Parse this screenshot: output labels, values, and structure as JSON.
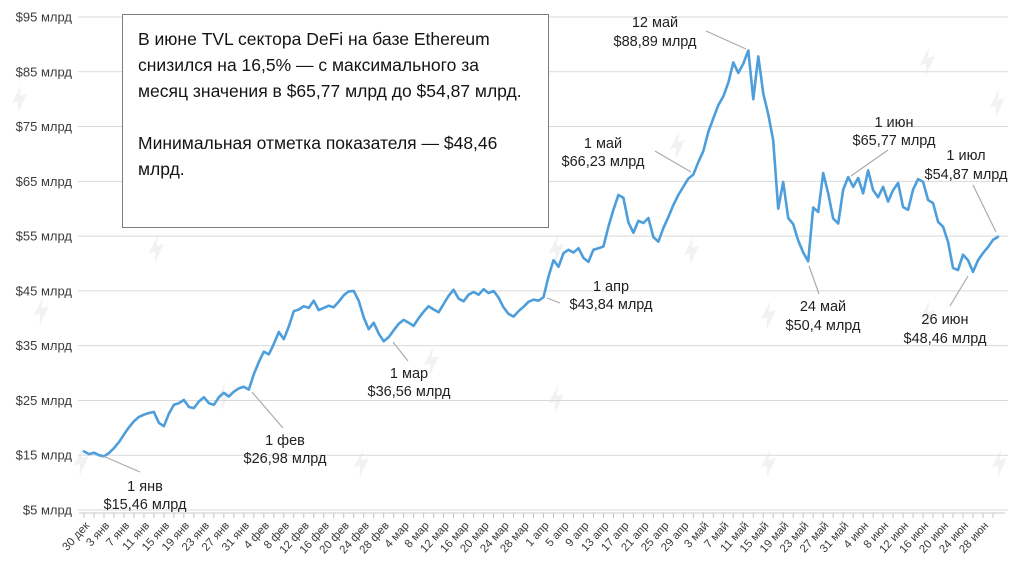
{
  "infobox": {
    "paragraph1": "В июне TVL сектора DeFi на базе Ethereum снизился на 16,5% — с максимального за месяц значения в $65,77 млрд до $54,87 млрд.",
    "paragraph2": "Минимальная отметка показателя — $48,46 млрд."
  },
  "icons": {
    "watermark": "forklog-lightning-watermark"
  },
  "chart_data": {
    "type": "line",
    "title": "",
    "xlabel": "",
    "ylabel": "",
    "ylim": [
      5,
      95
    ],
    "grid": true,
    "line_color": "#4D9EDB",
    "grid_color": "#D9D9D9",
    "y_ticks": [
      95,
      85,
      75,
      65,
      55,
      45,
      35,
      25,
      15,
      5
    ],
    "y_tick_labels": [
      "$95 млрд",
      "$85 млрд",
      "$75 млрд",
      "$65 млрд",
      "$55 млрд",
      "$45 млрд",
      "$35 млрд",
      "$25 млрд",
      "$15 млрд",
      "$5 млрд"
    ],
    "x_tick_labels": [
      "30 дек",
      "3 янв",
      "7 янв",
      "11 янв",
      "15 янв",
      "19 янв",
      "23 янв",
      "27 янв",
      "31 янв",
      "4 фев",
      "8 фев",
      "12 фев",
      "16 фев",
      "20 фев",
      "24 фев",
      "28 фев",
      "4 мар",
      "8 мар",
      "12 мар",
      "16 мар",
      "20 мар",
      "24 мар",
      "28 мар",
      "1 апр",
      "5 апр",
      "9 апр",
      "13 апр",
      "17 апр",
      "21 апр",
      "25 апр",
      "29 апр",
      "3 май",
      "7 май",
      "11 май",
      "15 май",
      "19 май",
      "23 май",
      "27 май",
      "31 май",
      "4 июн",
      "8 июн",
      "12 июн",
      "16 июн",
      "20 июн",
      "24 июн",
      "28 июн"
    ],
    "label_tick_every": 4,
    "minor_tick_every": 2,
    "values": [
      15.7,
      15.2,
      15.46,
      15.0,
      14.8,
      15.4,
      16.3,
      17.4,
      18.8,
      20.1,
      21.2,
      22.0,
      22.4,
      22.7,
      22.9,
      20.9,
      20.3,
      22.6,
      24.2,
      24.5,
      25.1,
      23.8,
      23.6,
      24.8,
      25.6,
      24.5,
      24.2,
      25.6,
      26.4,
      25.7,
      26.6,
      27.2,
      27.5,
      26.98,
      29.8,
      32.0,
      33.9,
      33.4,
      35.3,
      37.5,
      36.2,
      38.5,
      41.3,
      41.6,
      42.2,
      41.9,
      43.2,
      41.5,
      41.9,
      42.3,
      42.0,
      43.0,
      44.2,
      44.9,
      45.0,
      43.2,
      40.2,
      38.0,
      39.2,
      37.2,
      35.8,
      36.56,
      37.8,
      39.0,
      39.7,
      39.2,
      38.6,
      40.0,
      41.2,
      42.2,
      41.6,
      41.1,
      42.6,
      44.1,
      45.2,
      43.6,
      43.1,
      44.3,
      44.8,
      44.3,
      45.3,
      44.6,
      45.0,
      43.8,
      42.0,
      40.8,
      40.3,
      41.3,
      42.1,
      43.0,
      43.4,
      43.2,
      43.84,
      47.6,
      50.6,
      49.4,
      51.9,
      52.5,
      52.0,
      52.8,
      51.0,
      50.3,
      52.5,
      52.8,
      53.1,
      56.7,
      59.8,
      62.5,
      62.0,
      57.5,
      55.6,
      57.8,
      57.4,
      58.3,
      54.8,
      54.0,
      56.5,
      58.5,
      60.7,
      62.5,
      64.0,
      65.5,
      66.23,
      68.5,
      70.5,
      74.0,
      76.5,
      78.9,
      80.5,
      83.0,
      86.7,
      84.8,
      86.5,
      88.89,
      80.0,
      87.8,
      81.0,
      77.2,
      72.5,
      60.0,
      64.9,
      58.3,
      57.2,
      54.2,
      52.0,
      50.4,
      60.2,
      59.4,
      66.5,
      62.8,
      58.2,
      57.3,
      63.5,
      65.77,
      64.0,
      65.6,
      62.8,
      67.0,
      63.4,
      62.1,
      64.0,
      61.3,
      63.4,
      64.7,
      60.3,
      59.8,
      63.5,
      65.4,
      64.9,
      61.6,
      61.0,
      57.6,
      56.7,
      53.9,
      49.2,
      48.8,
      51.6,
      50.6,
      48.46,
      50.6,
      51.9,
      53.0,
      54.3,
      54.87
    ],
    "annotations": [
      {
        "label": "1 янв",
        "value_label": "$15,46 млрд",
        "index": 2,
        "value": 15.46
      },
      {
        "label": "1 фев",
        "value_label": "$26,98 млрд",
        "index": 33,
        "value": 26.98
      },
      {
        "label": "1 мар",
        "value_label": "$36,56 млрд",
        "index": 61,
        "value": 36.56
      },
      {
        "label": "1 апр",
        "value_label": "$43,84 млрд",
        "index": 92,
        "value": 43.84
      },
      {
        "label": "1 май",
        "value_label": "$66,23 млрд",
        "index": 122,
        "value": 66.23
      },
      {
        "label": "12 май",
        "value_label": "$88,89 млрд",
        "index": 133,
        "value": 88.89
      },
      {
        "label": "24 май",
        "value_label": "$50,4 млрд",
        "index": 145,
        "value": 50.4
      },
      {
        "label": "1 июн",
        "value_label": "$65,77 млрд",
        "index": 153,
        "value": 65.77
      },
      {
        "label": "26 июн",
        "value_label": "$48,46 млрд",
        "index": 178,
        "value": 48.46
      },
      {
        "label": "1 июл",
        "value_label": "$54,87 млрд",
        "index": 183,
        "value": 54.87
      }
    ]
  }
}
